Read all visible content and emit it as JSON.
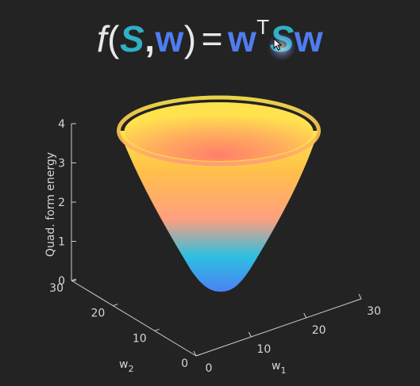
{
  "title": {
    "fn": "f",
    "open": "(",
    "S": "S",
    "comma": ",",
    "w": "w",
    "close": ")",
    "eq": "=",
    "w2": "w",
    "T": "T",
    "S2": "S",
    "w3": "w"
  },
  "chart_data": {
    "type": "surface",
    "function": "w^T S w",
    "xlabel": "w1",
    "ylabel": "w2",
    "zlabel": "Quad. form energy",
    "x_ticks": [
      "0",
      "10",
      "20",
      "30"
    ],
    "y_ticks": [
      "0",
      "10",
      "20",
      "30"
    ],
    "z_ticks": [
      "0",
      "1",
      "2",
      "3",
      "4"
    ],
    "xlim": [
      0,
      30
    ],
    "ylim": [
      0,
      30
    ],
    "zlim": [
      0,
      4
    ],
    "colormap": [
      "#4a82f5",
      "#2ec0e0",
      "#ff9f80",
      "#ffc04a",
      "#ffe74d"
    ],
    "background": "#232323"
  }
}
